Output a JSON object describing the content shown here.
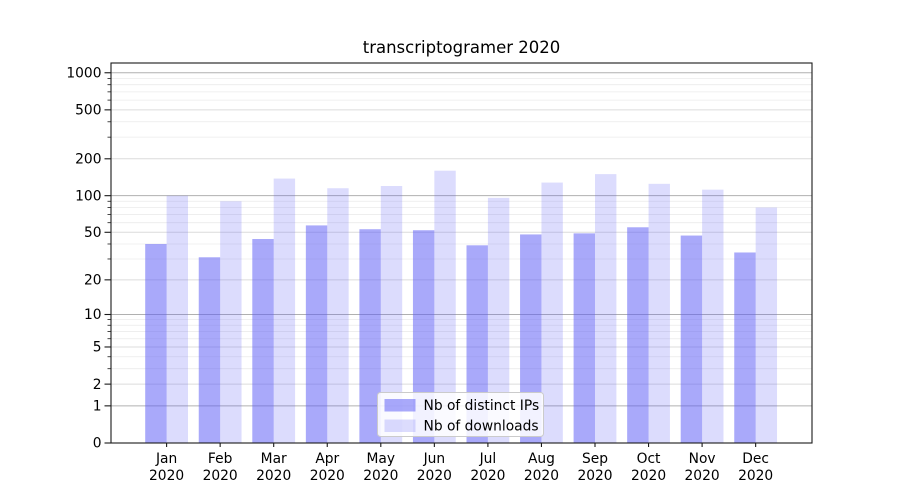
{
  "chart_data": {
    "type": "bar",
    "title": "transcriptogramer 2020",
    "categories": [
      "Jan",
      "Feb",
      "Mar",
      "Apr",
      "May",
      "Jun",
      "Jul",
      "Aug",
      "Sep",
      "Oct",
      "Nov",
      "Dec"
    ],
    "category_year": "2020",
    "series": [
      {
        "name": "Nb of distinct IPs",
        "color": "rgba(92,92,245,0.53)",
        "values": [
          40,
          31,
          44,
          57,
          53,
          52,
          39,
          48,
          49,
          55,
          47,
          34
        ]
      },
      {
        "name": "Nb of downloads",
        "color": "rgba(92,92,245,0.215)",
        "values": [
          100,
          90,
          138,
          115,
          120,
          160,
          96,
          128,
          150,
          125,
          112,
          80
        ]
      }
    ],
    "y_axis": {
      "scale": "symlog",
      "ylim": [
        0,
        1200
      ],
      "ticks": [
        0,
        1,
        2,
        5,
        10,
        20,
        50,
        100,
        200,
        500,
        1000
      ],
      "tick_labels": [
        "0",
        "1",
        "2",
        "5",
        "10",
        "20",
        "50",
        "100",
        "200",
        "500",
        "1000"
      ],
      "minor_ticks": [
        3,
        4,
        6,
        7,
        8,
        9,
        30,
        40,
        60,
        70,
        80,
        90,
        300,
        400,
        600,
        700,
        800,
        900
      ]
    },
    "legend": {
      "position": "lower center",
      "labels": [
        "Nb of distinct IPs",
        "Nb of downloads"
      ]
    },
    "grid": true,
    "xlabel": "",
    "ylabel": ""
  }
}
